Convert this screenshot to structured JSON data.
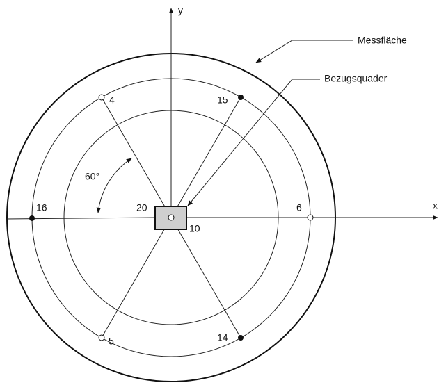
{
  "axes": {
    "x": "x",
    "y": "y"
  },
  "callouts": {
    "measurement_surface": "Messfläche",
    "reference_box": "Bezugsquader"
  },
  "angle_label": "60°",
  "points": [
    {
      "label": "4"
    },
    {
      "label": "15"
    },
    {
      "label": "16"
    },
    {
      "label": "6"
    },
    {
      "label": "5"
    },
    {
      "label": "14"
    },
    {
      "label": "20"
    },
    {
      "label": "10"
    }
  ]
}
